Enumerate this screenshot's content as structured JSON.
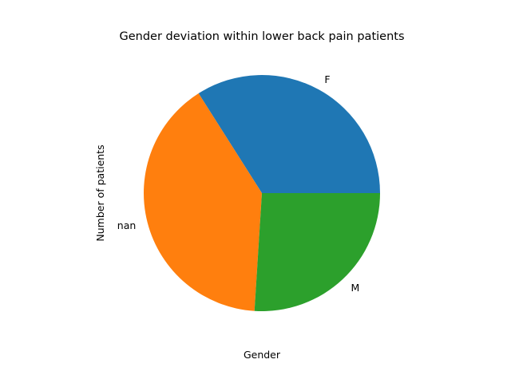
{
  "chart_data": {
    "type": "pie",
    "title": "Gender deviation within lower back pain patients",
    "xlabel": "Gender",
    "ylabel": "Number of patients",
    "categories": [
      "F",
      "nan",
      "M"
    ],
    "values": [
      34,
      40,
      26
    ],
    "colors": [
      "#1f77b4",
      "#ff7f0e",
      "#2ca02c"
    ],
    "start_angle_deg": 0,
    "direction": "counterclockwise",
    "legend": "none",
    "grid": false
  }
}
